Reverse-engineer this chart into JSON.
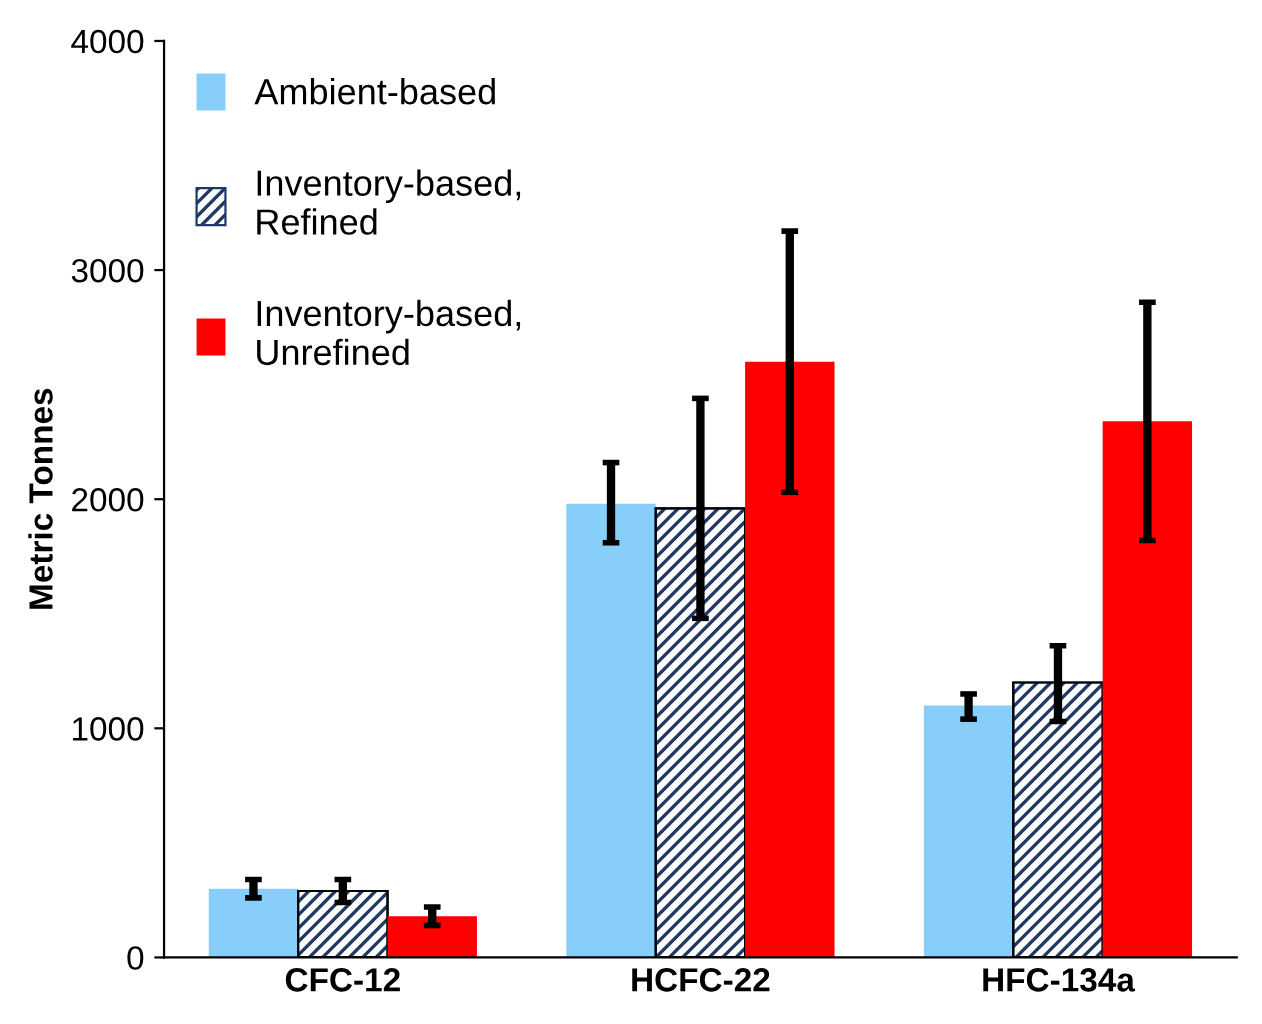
{
  "chart_data": {
    "type": "bar",
    "ylabel": "Metric Tonnes",
    "categories": [
      "CFC-12",
      "HCFC-22",
      "HFC-134a"
    ],
    "ylim": [
      0,
      4000
    ],
    "yticks": [
      0,
      1000,
      2000,
      3000,
      4000
    ],
    "grid": false,
    "legend": "top left",
    "series": [
      {
        "name": "Ambient-based",
        "color": "#87cefa",
        "values": [
          300,
          1980,
          1100
        ],
        "errors": [
          [
            260,
            340
          ],
          [
            1810,
            2160
          ],
          [
            1040,
            1150
          ]
        ]
      },
      {
        "name": "Inventory-based,\nRefined",
        "color": "#1f3864",
        "values": [
          290,
          1960,
          1200
        ],
        "errors": [
          [
            240,
            340
          ],
          [
            1480,
            2440
          ],
          [
            1030,
            1360
          ]
        ]
      },
      {
        "name": "Inventory-based,\nUnrefined",
        "color": "#ff0000",
        "values": [
          180,
          2600,
          2340
        ],
        "errors": [
          [
            140,
            220
          ],
          [
            2030,
            3170
          ],
          [
            1820,
            2860
          ]
        ]
      }
    ]
  }
}
